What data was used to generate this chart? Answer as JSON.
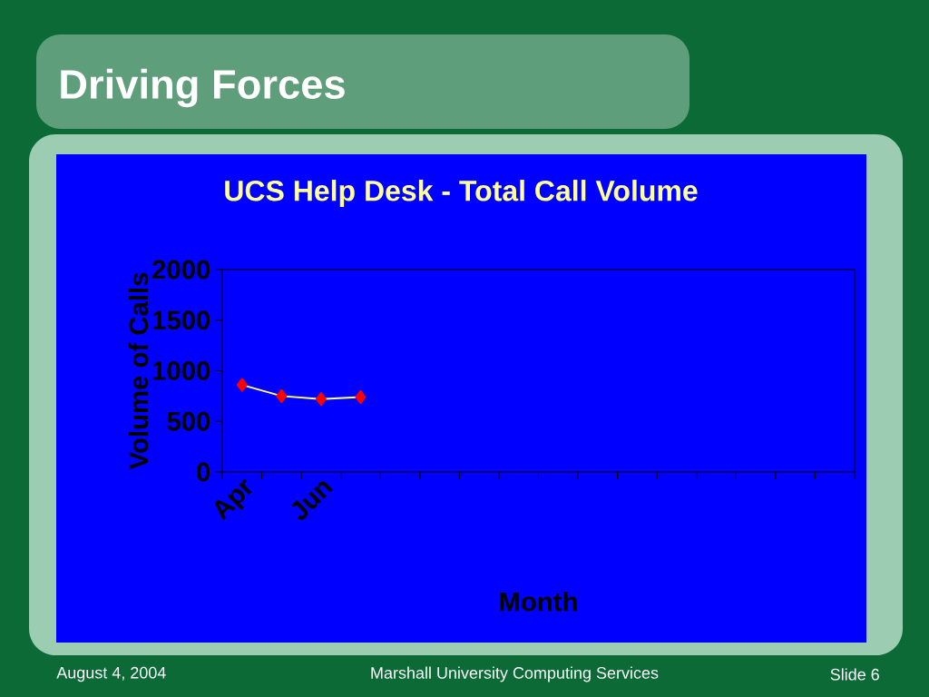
{
  "chart_data": {
    "type": "line",
    "title": "Driving Forces",
    "subtitle": "UCS Help Desk - Total Call Volume",
    "xlabel": "Month",
    "ylabel": "Volume of Calls",
    "categories": [
      "Apr",
      null,
      "Jun",
      null,
      null,
      null,
      null,
      null,
      null,
      null,
      null,
      null,
      null,
      null,
      null,
      null
    ],
    "values": [
      860,
      750,
      720,
      740,
      null,
      null,
      null,
      null,
      null,
      null,
      null,
      null,
      null,
      null,
      null,
      null
    ],
    "color": "#ff0000",
    "ylim": [
      0,
      2000
    ],
    "yticks": [
      0,
      500,
      1000,
      1500,
      2000
    ],
    "marker": "diamond",
    "line_style": "solid",
    "annotations": [
      "August 4, 2004",
      "Marshall University Computing Services",
      "Slide 6"
    ]
  }
}
